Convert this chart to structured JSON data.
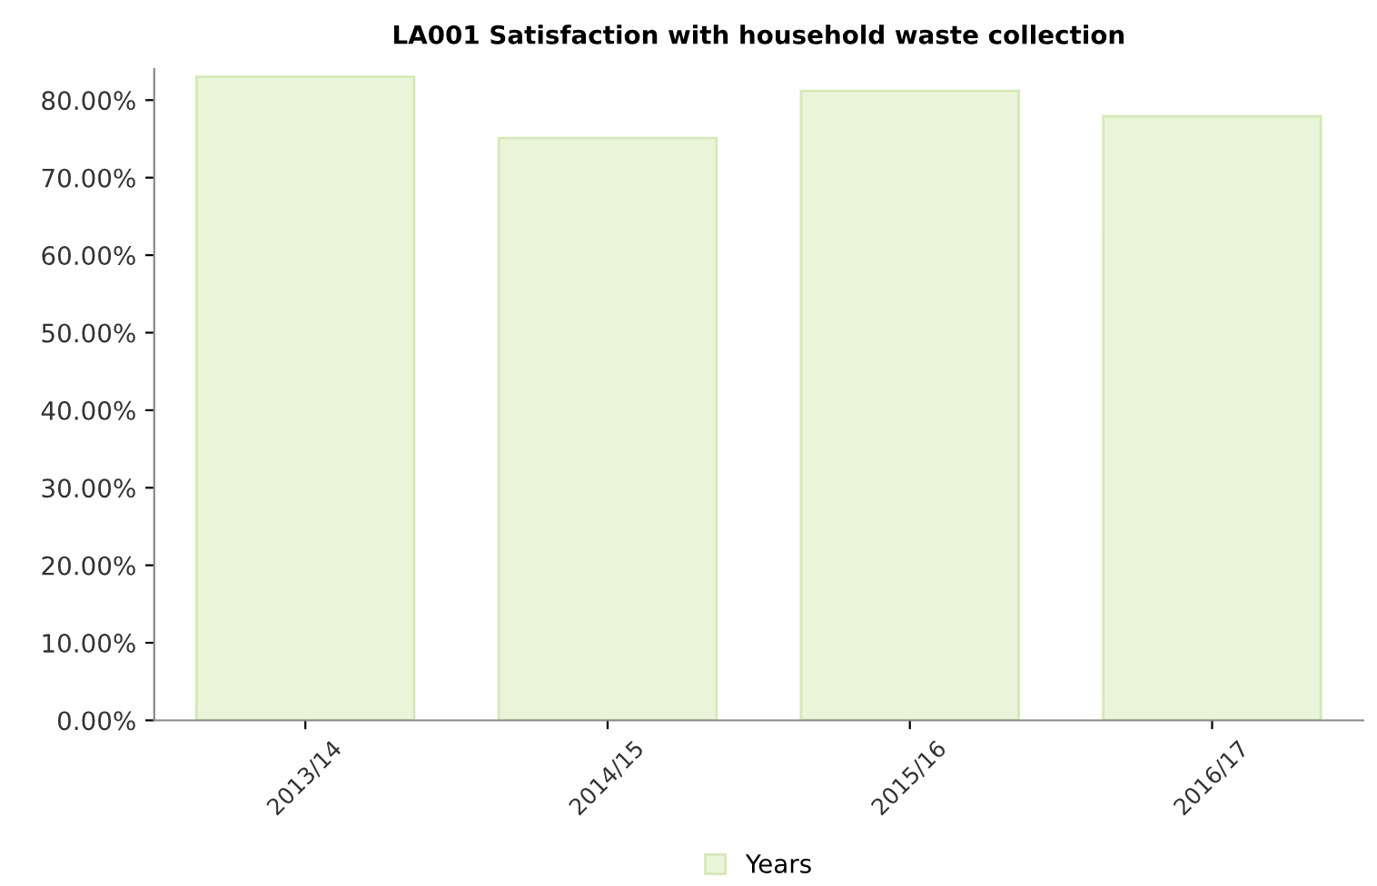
{
  "chart_data": {
    "type": "bar",
    "title": "LA001 Satisfaction with household waste collection",
    "categories": [
      "2013/14",
      "2014/15",
      "2015/16",
      "2016/17"
    ],
    "series": [
      {
        "name": "Years",
        "color": "#e9f5d8",
        "values": [
          83.0,
          75.1,
          81.2,
          77.9
        ]
      }
    ],
    "ylim": [
      0,
      84
    ],
    "yticks": [
      {
        "value": 0,
        "label": "0.00%"
      },
      {
        "value": 10,
        "label": "10.00%"
      },
      {
        "value": 20,
        "label": "20.00%"
      },
      {
        "value": 30,
        "label": "30.00%"
      },
      {
        "value": 40,
        "label": "40.00%"
      },
      {
        "value": 50,
        "label": "50.00%"
      },
      {
        "value": 60,
        "label": "60.00%"
      },
      {
        "value": 70,
        "label": "70.00%"
      },
      {
        "value": 80,
        "label": "80.00%"
      }
    ],
    "grid": false,
    "legend": "bottom"
  }
}
